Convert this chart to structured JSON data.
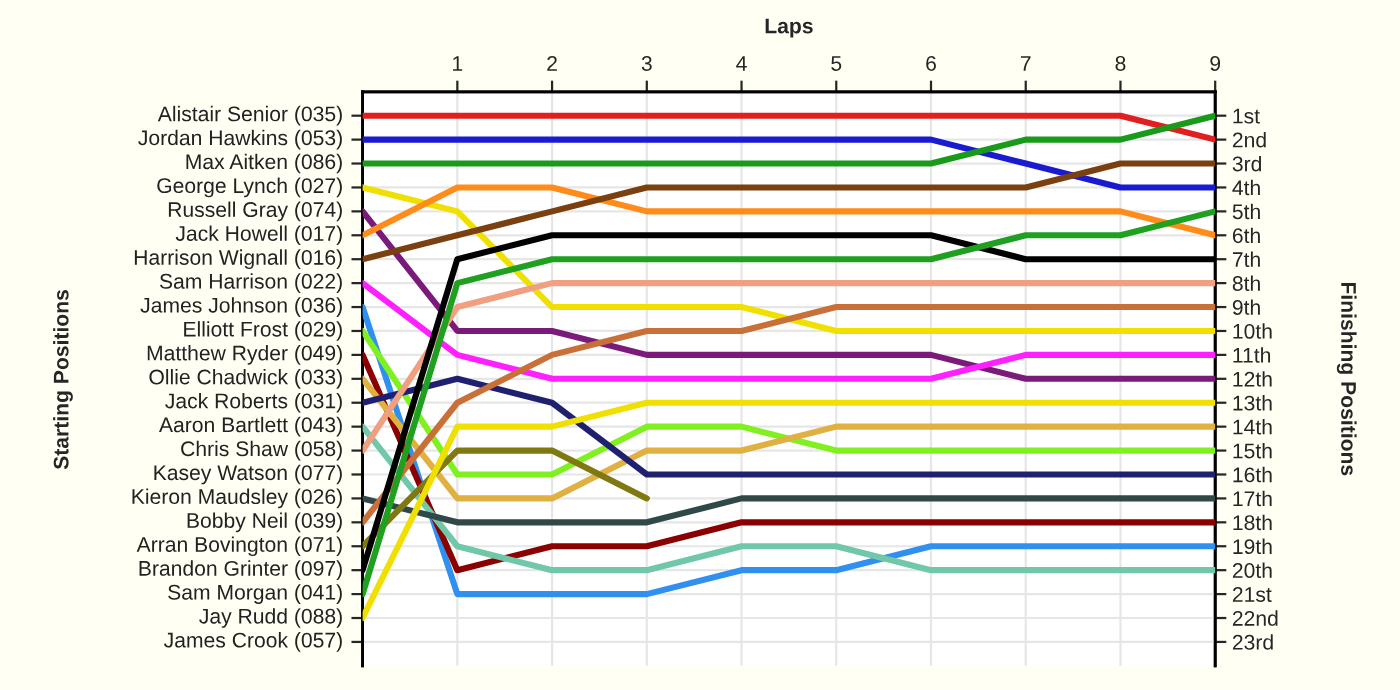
{
  "chart_data": {
    "type": "line",
    "xlabel": "Laps",
    "y2label": "Finishing Positions",
    "x": [
      0,
      1,
      2,
      3,
      4,
      5,
      6,
      7,
      8,
      9
    ],
    "xlim": [
      0,
      9
    ],
    "xticks": [
      1,
      2,
      3,
      4,
      5,
      6,
      7,
      8,
      9
    ],
    "y2lim": [
      24,
      0
    ],
    "y2ticks": [
      {
        "value": 1,
        "label": "1st"
      },
      {
        "value": 2,
        "label": "2nd"
      },
      {
        "value": 3,
        "label": "3rd"
      },
      {
        "value": 4,
        "label": "4th"
      },
      {
        "value": 5,
        "label": "5th"
      },
      {
        "value": 6,
        "label": "6th"
      },
      {
        "value": 7,
        "label": "7th"
      },
      {
        "value": 8,
        "label": "8th"
      },
      {
        "value": 9,
        "label": "9th"
      },
      {
        "value": 10,
        "label": "10th"
      },
      {
        "value": 11,
        "label": "11th"
      },
      {
        "value": 12,
        "label": "12th"
      },
      {
        "value": 13,
        "label": "13th"
      },
      {
        "value": 14,
        "label": "14th"
      },
      {
        "value": 15,
        "label": "15th"
      },
      {
        "value": 16,
        "label": "16th"
      },
      {
        "value": 17,
        "label": "17th"
      },
      {
        "value": 18,
        "label": "18th"
      },
      {
        "value": 19,
        "label": "19th"
      },
      {
        "value": 20,
        "label": "20th"
      },
      {
        "value": 21,
        "label": "21st"
      },
      {
        "value": 22,
        "label": "22nd"
      },
      {
        "value": 23,
        "label": "23rd"
      }
    ],
    "annotations": [
      "Starting Positions",
      "Alistair Senior (035)",
      "Jordan Hawkins (053)",
      "Max Aitken (086)",
      "George Lynch (027)",
      "Russell Gray (074)",
      "Jack Howell (017)",
      "Harrison Wignall (016)",
      "Sam Harrison (022)",
      "James Johnson (036)",
      "Elliott Frost (029)",
      "Matthew Ryder (049)",
      "Ollie Chadwick (033)",
      "Jack Roberts (031)",
      "Aaron Bartlett (043)",
      "Chris Shaw (058)",
      "Kasey Watson (077)",
      "Kieron Maudsley (026)",
      "Bobby Neil (039)",
      "Arran Bovington (071)",
      "Brandon Grinter (097)",
      "Sam Morgan (041)",
      "Jay Rudd (088)",
      "James Crook (057)"
    ],
    "grid": true,
    "legend": false,
    "marker": "none",
    "line_style": "solid",
    "series": [
      {
        "axis": "y2",
        "color": "#e02020",
        "values": [
          1,
          1,
          1,
          1,
          1,
          1,
          1,
          1,
          1,
          2
        ]
      },
      {
        "axis": "y2",
        "color": "#1a1ad0",
        "values": [
          2,
          2,
          2,
          2,
          2,
          2,
          2,
          3,
          4,
          4
        ]
      },
      {
        "axis": "y2",
        "color": "#1a9a1a",
        "values": [
          3,
          3,
          3,
          3,
          3,
          3,
          3,
          2,
          2,
          1
        ]
      },
      {
        "axis": "y2",
        "color": "#f0e000",
        "values": [
          4,
          5,
          9,
          9,
          9,
          10,
          10,
          10,
          10,
          10
        ]
      },
      {
        "axis": "y2",
        "color": "#7a1a7a",
        "values": [
          5,
          10,
          10,
          11,
          11,
          11,
          11,
          12,
          12,
          12
        ]
      },
      {
        "axis": "y2",
        "color": "#ff8c1a",
        "values": [
          6,
          4,
          4,
          5,
          5,
          5,
          5,
          5,
          5,
          6
        ]
      },
      {
        "axis": "y2",
        "color": "#7a4010",
        "values": [
          7,
          6,
          5,
          4,
          4,
          4,
          4,
          4,
          3,
          3
        ]
      },
      {
        "axis": "y2",
        "color": "#ff20ff",
        "values": [
          8,
          11,
          12,
          12,
          12,
          12,
          12,
          11,
          11,
          11
        ]
      },
      {
        "axis": "y2",
        "color": "#3090f0",
        "values": [
          9,
          21,
          21,
          21,
          20,
          20,
          19,
          19,
          19,
          19
        ]
      },
      {
        "axis": "y2",
        "color": "#80f020",
        "values": [
          10,
          16,
          16,
          14,
          14,
          15,
          15,
          15,
          15,
          15
        ]
      },
      {
        "axis": "y2",
        "color": "#8b0000",
        "values": [
          11,
          20,
          19,
          19,
          18,
          18,
          18,
          18,
          18,
          18
        ]
      },
      {
        "axis": "y2",
        "color": "#e0b040",
        "values": [
          12,
          17,
          17,
          15,
          15,
          14,
          14,
          14,
          14,
          14
        ]
      },
      {
        "axis": "y2",
        "color": "#202070",
        "values": [
          13,
          12,
          13,
          16,
          16,
          16,
          16,
          16,
          16,
          16
        ]
      },
      {
        "axis": "y2",
        "color": "#70c8a8",
        "values": [
          14,
          19,
          20,
          20,
          19,
          19,
          20,
          20,
          20,
          20
        ]
      },
      {
        "axis": "y2",
        "color": "#f0a080",
        "values": [
          15,
          9,
          8,
          8,
          8,
          8,
          8,
          8,
          8,
          8
        ]
      },
      {
        "axis": "y2",
        "color": "#304848",
        "values": [
          17,
          18,
          18,
          18,
          17,
          17,
          17,
          17,
          17,
          17
        ]
      },
      {
        "axis": "y2",
        "color": "#c87038",
        "values": [
          18,
          13,
          11,
          10,
          10,
          9,
          9,
          9,
          9,
          9
        ]
      },
      {
        "axis": "y2",
        "color": "#807810",
        "values": [
          19,
          15,
          15,
          17,
          null,
          null,
          null,
          null,
          null,
          null
        ]
      },
      {
        "axis": "y2",
        "color": "#000000",
        "values": [
          20,
          7,
          6,
          6,
          6,
          6,
          6,
          7,
          7,
          7
        ]
      },
      {
        "axis": "y2",
        "color": "#20a020",
        "values": [
          21,
          8,
          7,
          7,
          7,
          7,
          7,
          6,
          6,
          5
        ]
      },
      {
        "axis": "y2",
        "color": "#f0e000",
        "values": [
          22,
          14,
          14,
          13,
          13,
          13,
          13,
          13,
          13,
          13
        ]
      }
    ]
  }
}
